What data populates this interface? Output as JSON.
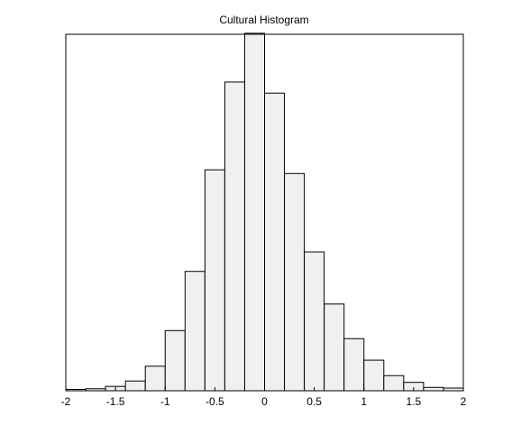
{
  "chart_data": {
    "type": "bar",
    "title": "Cultural Histogram",
    "xlabel": "",
    "ylabel": "",
    "xlim": [
      -2,
      2
    ],
    "ylim": [
      0,
      1.06
    ],
    "grid": false,
    "legend": "none",
    "bar_color": "#f0f0f0",
    "edge_color": "#000000",
    "x_ticks": [
      {
        "value": -2,
        "label": "-2"
      },
      {
        "value": -1.5,
        "label": "-1.5"
      },
      {
        "value": -1,
        "label": "-1"
      },
      {
        "value": -0.5,
        "label": "-0.5"
      },
      {
        "value": 0,
        "label": "0"
      },
      {
        "value": 0.5,
        "label": "0.5"
      },
      {
        "value": 1,
        "label": "1"
      },
      {
        "value": 1.5,
        "label": "1.5"
      },
      {
        "value": 2,
        "label": "2"
      }
    ],
    "bins": [
      {
        "start": -2.0,
        "end": -1.8,
        "value": 0.004
      },
      {
        "start": -1.8,
        "end": -1.6,
        "value": 0.006
      },
      {
        "start": -1.6,
        "end": -1.4,
        "value": 0.013
      },
      {
        "start": -1.4,
        "end": -1.2,
        "value": 0.029
      },
      {
        "start": -1.2,
        "end": -1.0,
        "value": 0.073
      },
      {
        "start": -1.0,
        "end": -0.8,
        "value": 0.179
      },
      {
        "start": -0.8,
        "end": -0.6,
        "value": 0.355
      },
      {
        "start": -0.6,
        "end": -0.4,
        "value": 0.657
      },
      {
        "start": -0.4,
        "end": -0.2,
        "value": 0.918
      },
      {
        "start": -0.2,
        "end": 0.0,
        "value": 1.063
      },
      {
        "start": 0.0,
        "end": 0.2,
        "value": 0.885
      },
      {
        "start": 0.2,
        "end": 0.4,
        "value": 0.646
      },
      {
        "start": 0.4,
        "end": 0.6,
        "value": 0.413
      },
      {
        "start": 0.6,
        "end": 0.8,
        "value": 0.258
      },
      {
        "start": 0.8,
        "end": 1.0,
        "value": 0.155
      },
      {
        "start": 1.0,
        "end": 1.2,
        "value": 0.091
      },
      {
        "start": 1.2,
        "end": 1.4,
        "value": 0.045
      },
      {
        "start": 1.4,
        "end": 1.6,
        "value": 0.025
      },
      {
        "start": 1.6,
        "end": 1.8,
        "value": 0.01
      },
      {
        "start": 1.8,
        "end": 2.0,
        "value": 0.008
      }
    ]
  }
}
